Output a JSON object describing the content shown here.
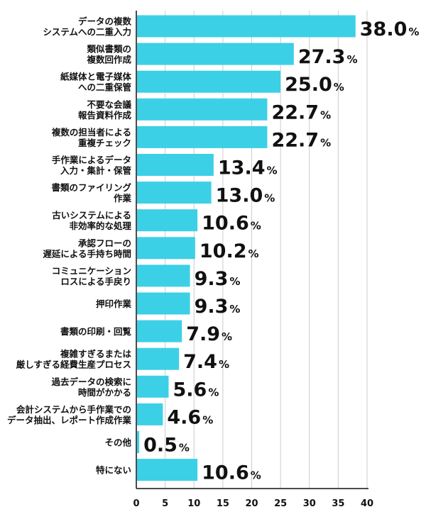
{
  "chart_data": {
    "type": "bar",
    "orientation": "horizontal",
    "categories": [
      [
        "データの複数",
        "システムへの二重入力"
      ],
      [
        "類似書類の",
        "複数回作成"
      ],
      [
        "紙媒体と電子媒体",
        "への二重保管"
      ],
      [
        "不要な会議",
        "報告資料作成"
      ],
      [
        "複数の担当者による",
        "重複チェック"
      ],
      [
        "手作業によるデータ",
        "入力・集計・保管"
      ],
      [
        "書類のファイリング",
        "作業"
      ],
      [
        "古いシステムによる",
        "非効率的な処理"
      ],
      [
        "承認フローの",
        "遅延による手持ち時間"
      ],
      [
        "コミュニケーション",
        "ロスによる手戻り"
      ],
      [
        "押印作業"
      ],
      [
        "書類の印刷・回覧"
      ],
      [
        "複雑すぎるまたは",
        "厳しすぎる経費生産プロセス"
      ],
      [
        "過去データの検索に",
        "時間がかかる"
      ],
      [
        "会計システムから手作業での",
        "データ抽出、レポート作成作業"
      ],
      [
        "その他"
      ],
      [
        "特にない"
      ]
    ],
    "values": [
      38.0,
      27.3,
      25.0,
      22.7,
      22.7,
      13.4,
      13.0,
      10.6,
      10.2,
      9.3,
      9.3,
      7.9,
      7.4,
      5.6,
      4.6,
      0.5,
      10.6
    ],
    "value_labels": [
      "38.0",
      "27.3",
      "25.0",
      "22.7",
      "22.7",
      "13.4",
      "13.0",
      "10.6",
      "10.2",
      "9.3",
      "9.3",
      "7.9",
      "7.4",
      "5.6",
      "4.6",
      "0.5",
      "10.6"
    ],
    "value_suffix": "%",
    "xlim": [
      0,
      40
    ],
    "x_ticks": [
      "0",
      "5",
      "10",
      "15",
      "20",
      "25",
      "30",
      "35",
      "40"
    ],
    "grid": "vertical",
    "legend": "none",
    "bar_color": "#3cd0e6",
    "grid_color": "#cccccc",
    "axis_color": "#111111"
  }
}
